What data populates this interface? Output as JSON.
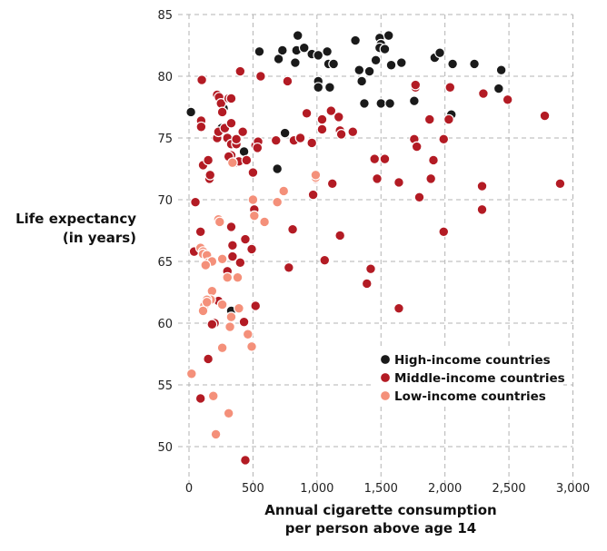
{
  "chart_data": {
    "type": "scatter",
    "title": "",
    "xlabel": [
      "Annual cigarette consumption",
      "per person above age 14"
    ],
    "ylabel": [
      "Life expectancy",
      "(in years)"
    ],
    "xlim": [
      0,
      3000
    ],
    "ylim": [
      50,
      85
    ],
    "xticks": [
      0,
      500,
      1000,
      1500,
      2000,
      2500,
      3000
    ],
    "xtick_labels": [
      "0",
      "500",
      "1,000",
      "1,500",
      "2,000",
      "2,500",
      "3,000"
    ],
    "yticks": [
      50,
      55,
      60,
      65,
      70,
      75,
      80,
      85
    ],
    "ytick_labels": [
      "50",
      "55",
      "60",
      "65",
      "70",
      "75",
      "80",
      "85"
    ],
    "grid": true,
    "legend_position": "bottom-right",
    "series": [
      {
        "name": "High-income countries",
        "color": "#1a1a1a",
        "points": [
          [
            15,
            77.1
          ],
          [
            270,
            77.4
          ],
          [
            255,
            75.8
          ],
          [
            430,
            73.9
          ],
          [
            330,
            61.0
          ],
          [
            690,
            72.5
          ],
          [
            750,
            75.4
          ],
          [
            550,
            82.0
          ],
          [
            700,
            81.4
          ],
          [
            730,
            82.1
          ],
          [
            830,
            81.1
          ],
          [
            840,
            82.1
          ],
          [
            850,
            83.3
          ],
          [
            900,
            82.3
          ],
          [
            960,
            81.8
          ],
          [
            1010,
            81.7
          ],
          [
            1010,
            79.6
          ],
          [
            1010,
            79.1
          ],
          [
            1080,
            82.0
          ],
          [
            1090,
            81.0
          ],
          [
            1100,
            79.1
          ],
          [
            1130,
            81.0
          ],
          [
            1300,
            82.9
          ],
          [
            1330,
            80.5
          ],
          [
            1350,
            79.6
          ],
          [
            1370,
            77.8
          ],
          [
            1410,
            80.4
          ],
          [
            1460,
            81.3
          ],
          [
            1490,
            83.1
          ],
          [
            1500,
            82.6
          ],
          [
            1490,
            82.3
          ],
          [
            1530,
            82.2
          ],
          [
            1500,
            77.8
          ],
          [
            1560,
            83.3
          ],
          [
            1570,
            77.8
          ],
          [
            1580,
            80.9
          ],
          [
            1660,
            81.1
          ],
          [
            1760,
            78.0
          ],
          [
            1920,
            81.5
          ],
          [
            1960,
            81.9
          ],
          [
            2050,
            76.9
          ],
          [
            2060,
            81.0
          ],
          [
            2230,
            81.0
          ],
          [
            2420,
            79.0
          ],
          [
            2440,
            80.5
          ]
        ]
      },
      {
        "name": "Middle-income countries",
        "color": "#b31b24",
        "points": [
          [
            100,
            79.7
          ],
          [
            110,
            72.8
          ],
          [
            150,
            73.2
          ],
          [
            160,
            71.7
          ],
          [
            165,
            72.0
          ],
          [
            220,
            78.5
          ],
          [
            235,
            78.3
          ],
          [
            250,
            77.8
          ],
          [
            260,
            77.1
          ],
          [
            310,
            78.2
          ],
          [
            330,
            78.2
          ],
          [
            400,
            80.4
          ],
          [
            560,
            80.0
          ],
          [
            770,
            79.6
          ],
          [
            95,
            76.4
          ],
          [
            95,
            75.9
          ],
          [
            220,
            75.0
          ],
          [
            230,
            75.5
          ],
          [
            280,
            75.8
          ],
          [
            300,
            75.0
          ],
          [
            330,
            76.2
          ],
          [
            330,
            74.5
          ],
          [
            370,
            74.5
          ],
          [
            370,
            74.9
          ],
          [
            420,
            75.5
          ],
          [
            330,
            73.6
          ],
          [
            310,
            73.5
          ],
          [
            360,
            73.0
          ],
          [
            390,
            73.1
          ],
          [
            450,
            73.2
          ],
          [
            500,
            72.2
          ],
          [
            520,
            74.4
          ],
          [
            540,
            74.7
          ],
          [
            535,
            74.2
          ],
          [
            680,
            74.8
          ],
          [
            820,
            74.8
          ],
          [
            870,
            75.0
          ],
          [
            920,
            77.0
          ],
          [
            960,
            74.6
          ],
          [
            1040,
            76.5
          ],
          [
            1040,
            75.7
          ],
          [
            1110,
            77.2
          ],
          [
            1170,
            76.7
          ],
          [
            1180,
            75.6
          ],
          [
            1190,
            75.3
          ],
          [
            1280,
            75.5
          ],
          [
            970,
            70.4
          ],
          [
            990,
            71.7
          ],
          [
            1120,
            71.3
          ],
          [
            1450,
            73.3
          ],
          [
            1530,
            73.3
          ],
          [
            1470,
            71.7
          ],
          [
            1640,
            71.4
          ],
          [
            1760,
            74.9
          ],
          [
            1780,
            74.3
          ],
          [
            1770,
            79.1
          ],
          [
            1770,
            79.3
          ],
          [
            1880,
            76.5
          ],
          [
            1990,
            74.9
          ],
          [
            2030,
            76.5
          ],
          [
            2040,
            79.1
          ],
          [
            2300,
            78.6
          ],
          [
            2490,
            78.1
          ],
          [
            2780,
            76.8
          ],
          [
            2900,
            71.3
          ],
          [
            2290,
            71.1
          ],
          [
            2290,
            69.2
          ],
          [
            1890,
            71.7
          ],
          [
            1910,
            73.2
          ],
          [
            1800,
            70.2
          ],
          [
            1990,
            67.4
          ],
          [
            1640,
            61.2
          ],
          [
            1420,
            64.4
          ],
          [
            1390,
            63.2
          ],
          [
            1180,
            67.1
          ],
          [
            1060,
            65.1
          ],
          [
            780,
            64.5
          ],
          [
            810,
            67.6
          ],
          [
            510,
            69.2
          ],
          [
            520,
            61.4
          ],
          [
            490,
            66.0
          ],
          [
            440,
            66.8
          ],
          [
            400,
            64.9
          ],
          [
            330,
            67.8
          ],
          [
            340,
            66.3
          ],
          [
            340,
            65.4
          ],
          [
            300,
            64.2
          ],
          [
            230,
            61.8
          ],
          [
            200,
            60.0
          ],
          [
            180,
            59.9
          ],
          [
            150,
            57.1
          ],
          [
            90,
            67.4
          ],
          [
            50,
            69.8
          ],
          [
            40,
            65.8
          ],
          [
            90,
            53.9
          ],
          [
            430,
            60.1
          ],
          [
            440,
            48.9
          ]
        ]
      },
      {
        "name": "Low-income countries",
        "color": "#f4907a",
        "points": [
          [
            20,
            55.9
          ],
          [
            90,
            66.1
          ],
          [
            110,
            65.8
          ],
          [
            110,
            65.6
          ],
          [
            140,
            65.5
          ],
          [
            150,
            64.9
          ],
          [
            180,
            65.0
          ],
          [
            130,
            64.7
          ],
          [
            230,
            68.4
          ],
          [
            240,
            68.2
          ],
          [
            260,
            65.2
          ],
          [
            260,
            58.0
          ],
          [
            300,
            63.7
          ],
          [
            180,
            62.6
          ],
          [
            170,
            61.9
          ],
          [
            140,
            61.9
          ],
          [
            120,
            61.4
          ],
          [
            110,
            61.0
          ],
          [
            140,
            61.7
          ],
          [
            260,
            61.5
          ],
          [
            380,
            63.7
          ],
          [
            330,
            60.5
          ],
          [
            390,
            61.2
          ],
          [
            320,
            59.7
          ],
          [
            460,
            59.1
          ],
          [
            490,
            58.1
          ],
          [
            500,
            70.0
          ],
          [
            510,
            68.7
          ],
          [
            590,
            68.2
          ],
          [
            690,
            69.8
          ],
          [
            740,
            70.7
          ],
          [
            990,
            71.8
          ],
          [
            990,
            72.0
          ],
          [
            340,
            73.0
          ],
          [
            190,
            54.1
          ],
          [
            210,
            51.0
          ],
          [
            310,
            52.7
          ]
        ]
      }
    ]
  }
}
